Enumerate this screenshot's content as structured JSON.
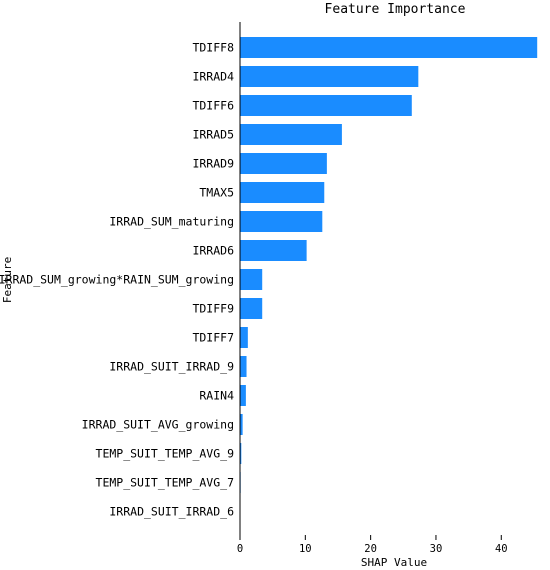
{
  "chart_data": {
    "type": "bar",
    "orientation": "horizontal",
    "title": "Feature Importance",
    "xlabel": "SHAP Value",
    "ylabel": "Feature",
    "xlim": [
      0,
      47
    ],
    "xticks": [
      0,
      10,
      20,
      30,
      40
    ],
    "grid": false,
    "bar_color": "#1a8cff",
    "categories": [
      "TDIFF8",
      "IRRAD4",
      "TDIFF6",
      "IRRAD5",
      "IRRAD9",
      "TMAX5",
      "IRRAD_SUM_maturing",
      "IRRAD6",
      "IRRAD_SUM_growing*RAIN_SUM_growing",
      "TDIFF9",
      "TDIFF7",
      "IRRAD_SUIT_IRRAD_9",
      "RAIN4",
      "IRRAD_SUIT_AVG_growing",
      "TEMP_SUIT_TEMP_AVG_9",
      "TEMP_SUIT_TEMP_AVG_7",
      "IRRAD_SUIT_IRRAD_6"
    ],
    "values": [
      45.5,
      27.3,
      26.3,
      15.6,
      13.3,
      12.9,
      12.6,
      10.2,
      3.4,
      3.4,
      1.2,
      1.0,
      0.9,
      0.4,
      0.2,
      0.1,
      0.05
    ]
  }
}
